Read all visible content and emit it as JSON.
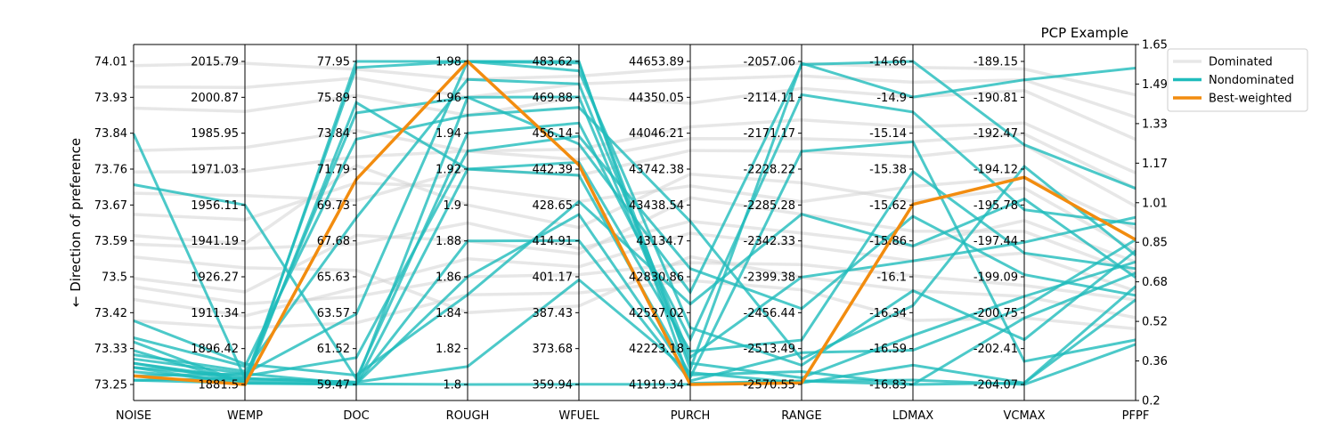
{
  "chart_data": {
    "type": "parallel_coordinates",
    "title": "PCP Example",
    "ylabel": "← Direction of preference",
    "axes": [
      "NOISE",
      "WEMP",
      "DOC",
      "ROUGH",
      "WFUEL",
      "PURCH",
      "RANGE",
      "LDMAX",
      "VCMAX",
      "PFPF"
    ],
    "axis_ticks": [
      [
        "73.25",
        "73.33",
        "73.42",
        "73.5",
        "73.59",
        "73.67",
        "73.76",
        "73.84",
        "73.93",
        "74.01"
      ],
      [
        "1881.5",
        "1896.42",
        "1911.34",
        "1926.27",
        "1941.19",
        "1956.11",
        "1971.03",
        "1985.95",
        "2000.87",
        "2015.79"
      ],
      [
        "59.47",
        "61.52",
        "63.57",
        "65.63",
        "67.68",
        "69.73",
        "71.79",
        "73.84",
        "75.89",
        "77.95"
      ],
      [
        "1.8",
        "1.82",
        "1.84",
        "1.86",
        "1.88",
        "1.9",
        "1.92",
        "1.94",
        "1.96",
        "1.98"
      ],
      [
        "359.94",
        "373.68",
        "387.43",
        "401.17",
        "414.91",
        "428.65",
        "442.39",
        "456.14",
        "469.88",
        "483.62"
      ],
      [
        "41919.34",
        "42223.18",
        "42527.02",
        "42830.86",
        "43134.7",
        "43438.54",
        "43742.38",
        "44046.21",
        "44350.05",
        "44653.89"
      ],
      [
        "-2570.55",
        "-2513.49",
        "-2456.44",
        "-2399.38",
        "-2342.33",
        "-2285.28",
        "-2228.22",
        "-2171.17",
        "-2114.11",
        "-2057.06"
      ],
      [
        "-16.83",
        "-16.59",
        "-16.34",
        "-16.1",
        "-15.86",
        "-15.62",
        "-15.38",
        "-15.14",
        "-14.9",
        "-14.66"
      ],
      [
        "-204.07",
        "-202.41",
        "-200.75",
        "-199.09",
        "-197.44",
        "-195.78",
        "-194.12",
        "-192.47",
        "-190.81",
        "-189.15"
      ],
      [
        "0.2",
        "0.36",
        "0.52",
        "0.68",
        "0.85",
        "1.01",
        "1.17",
        "1.33",
        "1.49",
        "1.65"
      ]
    ],
    "axis_ranges": [
      [
        73.25,
        74.01
      ],
      [
        1881.5,
        2015.79
      ],
      [
        59.47,
        77.95
      ],
      [
        1.8,
        1.98
      ],
      [
        359.94,
        483.62
      ],
      [
        41919.34,
        44653.89
      ],
      [
        -2570.55,
        -2057.06
      ],
      [
        -16.83,
        -14.66
      ],
      [
        -204.07,
        -189.15
      ],
      [
        0.2,
        1.65
      ]
    ],
    "legend": {
      "placement": "upper right, outside",
      "entries": [
        "Dominated",
        "Nondominated",
        "Best-weighted"
      ]
    },
    "colors": {
      "dominated": "#d3d3d3",
      "nondominated": "#1fbcbc",
      "best": "#f28c0f"
    },
    "series": [
      {
        "name": "Best-weighted",
        "values": [
          73.27,
          1881.5,
          71.2,
          1.98,
          444.0,
          41919.34,
          -2568.0,
          -15.62,
          -194.5,
          0.85
        ]
      },
      {
        "name": "Nondominated",
        "lines": [
          [
            73.29,
            1881.5,
            77.95,
            1.98,
            483.62,
            41930,
            -2565,
            -16.8,
            -204.07,
            0.38
          ],
          [
            73.3,
            1884,
            59.6,
            1.96,
            470,
            42100,
            -2560,
            -16.5,
            -200,
            0.75
          ],
          [
            73.26,
            1882,
            59.47,
            1.92,
            440,
            42000,
            -2550,
            -16.83,
            -204,
            0.58
          ],
          [
            73.31,
            1886,
            63.5,
            1.98,
            480,
            42400,
            -2540,
            -16.2,
            -202,
            0.8
          ],
          [
            73.28,
            1883,
            59.5,
            1.88,
            415,
            41950,
            -2520,
            -16.6,
            -200.5,
            0.85
          ],
          [
            73.72,
            1956.11,
            59.8,
            1.94,
            460,
            42300,
            -2110,
            -15.0,
            -196,
            0.92
          ],
          [
            73.84,
            1884,
            75.0,
            1.96,
            452,
            42700,
            -2062,
            -14.66,
            -193,
            1.08
          ],
          [
            73.35,
            1882,
            75.6,
            1.92,
            445,
            42200,
            -2500,
            -15.4,
            -198,
            0.72
          ],
          [
            73.27,
            1886,
            59.5,
            1.8,
            360,
            41920,
            -2565,
            -16.83,
            -201,
            0.7
          ],
          [
            73.3,
            1883,
            77.6,
            1.98,
            483,
            42050,
            -2060,
            -14.9,
            -190,
            1.62
          ],
          [
            73.4,
            1890,
            60.0,
            1.85,
            430,
            42600,
            -2300,
            -15.9,
            -195.5,
            0.68
          ],
          [
            73.32,
            1887,
            69.0,
            1.97,
            475,
            42150,
            -2400,
            -16.0,
            -197.5,
            0.95
          ],
          [
            73.29,
            1885,
            61.0,
            1.93,
            455,
            42900,
            -2450,
            -15.7,
            -199,
            0.6
          ],
          [
            73.33,
            1882,
            59.5,
            1.86,
            425,
            41980,
            -2200,
            -15.2,
            -203,
            0.4
          ],
          [
            73.36,
            1889,
            73.5,
            1.95,
            466,
            43300,
            -2530,
            -16.3,
            -194,
            0.78
          ],
          [
            73.26,
            1884,
            59.6,
            1.81,
            400,
            42020,
            -2568,
            -16.7,
            -204,
            0.64
          ]
        ]
      },
      {
        "name": "Dominated",
        "lines": [
          [
            73.5,
            1920,
            68.0,
            1.88,
            410,
            43500,
            -2300,
            -15.8,
            -197,
            0.7
          ],
          [
            73.6,
            1940,
            72.0,
            1.9,
            420,
            43700,
            -2250,
            -15.6,
            -195,
            0.8
          ],
          [
            73.45,
            1910,
            65.0,
            1.87,
            405,
            43200,
            -2350,
            -16.0,
            -198,
            0.62
          ],
          [
            74.0,
            2015,
            77.5,
            1.97,
            478,
            44600,
            -2060,
            -14.7,
            -189.5,
            1.5
          ],
          [
            73.9,
            1995,
            76.0,
            1.95,
            470,
            44300,
            -2100,
            -14.9,
            -190.5,
            1.3
          ],
          [
            73.7,
            1960,
            70.0,
            1.92,
            440,
            43900,
            -2200,
            -15.3,
            -193,
            1.0
          ],
          [
            73.55,
            1930,
            66.0,
            1.84,
            390,
            43000,
            -2400,
            -16.2,
            -200,
            0.5
          ],
          [
            73.8,
            1980,
            74.0,
            1.93,
            450,
            44100,
            -2150,
            -15.1,
            -192,
            1.15
          ],
          [
            73.4,
            1905,
            63.0,
            1.85,
            395,
            42800,
            -2420,
            -16.4,
            -201,
            0.45
          ],
          [
            73.65,
            1950,
            71.0,
            1.91,
            430,
            43600,
            -2280,
            -15.5,
            -194.5,
            0.9
          ],
          [
            73.95,
            2005,
            77.0,
            1.96,
            475,
            44500,
            -2080,
            -14.8,
            -190,
            1.4
          ],
          [
            73.58,
            1938,
            67.5,
            1.89,
            412,
            43300,
            -2330,
            -15.9,
            -196.5,
            0.75
          ],
          [
            73.48,
            1915,
            64.5,
            1.86,
            402,
            42950,
            -2380,
            -16.1,
            -199.5,
            0.58
          ],
          [
            73.75,
            1970,
            72.5,
            1.93,
            446,
            44000,
            -2180,
            -15.2,
            -192.5,
            1.08
          ]
        ]
      }
    ]
  }
}
